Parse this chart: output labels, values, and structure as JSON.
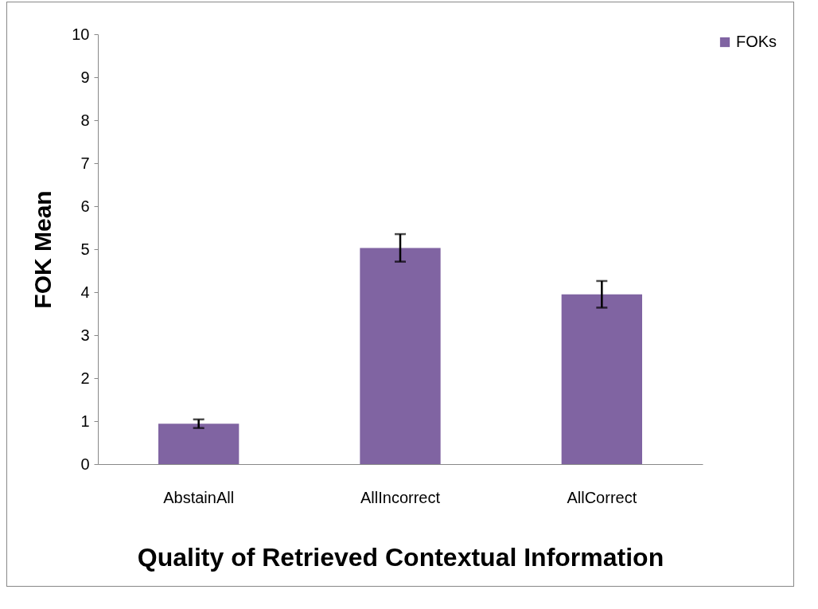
{
  "chart_data": {
    "type": "bar",
    "xlabel": "Quality of Retrieved Contextual Information",
    "ylabel": "FOK Mean",
    "categories": [
      "AbstainAll",
      "AllIncorrect",
      "AllCorrect"
    ],
    "series": [
      {
        "name": "FOKs",
        "color": "#8064a2",
        "values": [
          0.94,
          5.03,
          3.95
        ],
        "errors": [
          0.1,
          0.32,
          0.31
        ]
      }
    ],
    "ylim": [
      0,
      10
    ],
    "yticks": [
      0,
      1,
      2,
      3,
      4,
      5,
      6,
      7,
      8,
      9,
      10
    ],
    "grid": false,
    "legend": "right"
  }
}
